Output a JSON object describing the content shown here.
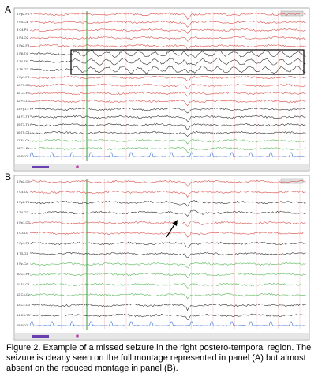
{
  "panels": [
    {
      "label": "A",
      "channels": [
        {
          "name": "1 Fp2-F4",
          "color": "#d9534f"
        },
        {
          "name": "2 F4-C4",
          "color": "#d9534f"
        },
        {
          "name": "3 C4-P4",
          "color": "#d9534f"
        },
        {
          "name": "4 P4-O2",
          "color": "#d9534f"
        },
        {
          "name": "5 Fp2-F8",
          "color": "#d9534f"
        },
        {
          "name": "6 F8-T4",
          "color": "#333333"
        },
        {
          "name": "7 T4-T6",
          "color": "#333333"
        },
        {
          "name": "8 T6-O2",
          "color": "#333333"
        },
        {
          "name": "9 Fp1-F3",
          "color": "#d9534f"
        },
        {
          "name": "10 F3-C3",
          "color": "#d9534f"
        },
        {
          "name": "11 C3-P3",
          "color": "#d9534f"
        },
        {
          "name": "12 P3-O1",
          "color": "#d9534f"
        },
        {
          "name": "13 Fp1-F7",
          "color": "#333333"
        },
        {
          "name": "14 F7-T3",
          "color": "#333333"
        },
        {
          "name": "15 T3-T5",
          "color": "#333333"
        },
        {
          "name": "16 T5-O1",
          "color": "#333333"
        },
        {
          "name": "17 Fz-Cz",
          "color": "#5cb85c"
        },
        {
          "name": "18 Cz-Pz",
          "color": "#5cb85c"
        },
        {
          "name": "19 ECG",
          "color": "#3b6fd8"
        }
      ]
    },
    {
      "label": "B",
      "channels": [
        {
          "name": "1 Fp2-C4",
          "color": "#d9534f"
        },
        {
          "name": "2 C4-O2",
          "color": "#d9534f"
        },
        {
          "name": "3 Fp2-T4",
          "color": "#333333"
        },
        {
          "name": "4 T4-O2",
          "color": "#333333"
        },
        {
          "name": "5 Fp1-C3",
          "color": "#d9534f"
        },
        {
          "name": "6 C3-O1",
          "color": "#d9534f"
        },
        {
          "name": "7 Fp1-T3",
          "color": "#333333"
        },
        {
          "name": "8 T3-O1",
          "color": "#333333"
        },
        {
          "name": "9 Fz-Cz",
          "color": "#5cb85c"
        },
        {
          "name": "10 Cz-Pz",
          "color": "#5cb85c"
        },
        {
          "name": "11 T4-C4",
          "color": "#5cb85c"
        },
        {
          "name": "12 C4-Cz",
          "color": "#5cb85c"
        },
        {
          "name": "13 Cz-C3",
          "color": "#333333"
        },
        {
          "name": "14 C3-T3",
          "color": "#333333"
        },
        {
          "name": "15 ECG",
          "color": "#3b6fd8"
        }
      ]
    }
  ],
  "caption": "Figure 2. Example of a missed seizure in the right postero-temporal region. The seizure is clearly seen on the full montage represented in panel (A) but almost absent on the reduced montage in panel (B)."
}
